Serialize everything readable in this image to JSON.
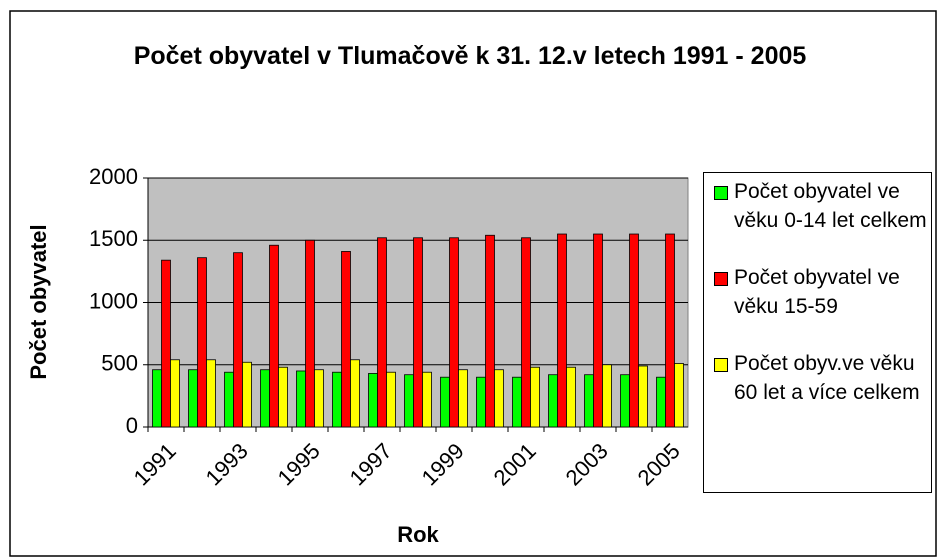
{
  "chart_data": {
    "type": "bar",
    "title": "Počet obyvatel v Tlumačově k 31. 12.v letech 1991 - 2005",
    "x_label": "Rok",
    "y_label": "Počet obyvatel",
    "categories": [
      "1991",
      null,
      "1993",
      null,
      "1995",
      null,
      "1997",
      null,
      "1999",
      null,
      "2001",
      null,
      "2003",
      null,
      "2005"
    ],
    "series": [
      {
        "name": "Počet obyvatel ve věku 0-14 let celkem",
        "color": "#00ff00",
        "values": [
          460,
          460,
          440,
          460,
          450,
          440,
          430,
          420,
          400,
          400,
          400,
          420,
          420,
          420,
          400
        ]
      },
      {
        "name": "Počet obyvatel ve věku 15-59",
        "color": "#ff0000",
        "values": [
          1340,
          1360,
          1400,
          1460,
          1500,
          1410,
          1520,
          1520,
          1520,
          1540,
          1520,
          1550,
          1550,
          1550,
          1550
        ]
      },
      {
        "name": "Počet obyv.ve věku 60 let a více celkem",
        "color": "#ffff00",
        "values": [
          540,
          540,
          520,
          480,
          460,
          540,
          440,
          440,
          460,
          460,
          480,
          480,
          500,
          490,
          510
        ]
      }
    ],
    "ylim": [
      0,
      2000
    ],
    "yticks": [
      0,
      500,
      1000,
      1500,
      2000
    ],
    "grid": true,
    "legend": "right"
  }
}
